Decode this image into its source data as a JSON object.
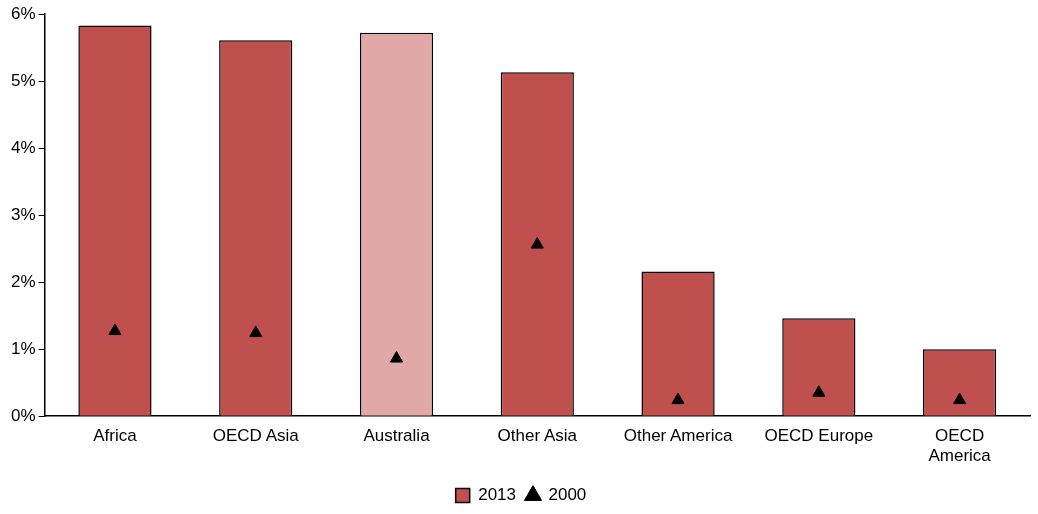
{
  "chart_data": {
    "type": "bar",
    "categories": [
      "Africa",
      "OECD Asia",
      "Australia",
      "Other Asia",
      "Other America",
      "OECD Europe",
      "OECD\nAmerica"
    ],
    "series": [
      {
        "name": "2013",
        "color": "#c0504d",
        "colors": [
          "#c0504d",
          "#c0504d",
          "#e0a8a6",
          "#c0504d",
          "#c0504d",
          "#c0504d",
          "#c0504d"
        ],
        "values": [
          5.83,
          5.61,
          5.72,
          5.13,
          2.16,
          1.46,
          1.0
        ]
      },
      {
        "name": "2000",
        "type": "scatter",
        "color": "#000000",
        "marker": "triangle",
        "x": [
          "Africa",
          "OECD Asia",
          "Australia",
          "Other Asia",
          "Other America",
          "OECD Europe",
          "OECD\nAmerica"
        ],
        "values": [
          1.27,
          1.24,
          0.86,
          2.56,
          0.24,
          0.35,
          0.24
        ]
      }
    ],
    "ylim": [
      0,
      6
    ],
    "yticks": [
      {
        "value": 0,
        "label": "0%"
      },
      {
        "value": 1,
        "label": "1%"
      },
      {
        "value": 2,
        "label": "2%"
      },
      {
        "value": 3,
        "label": "3%"
      },
      {
        "value": 4,
        "label": "4%"
      },
      {
        "value": 5,
        "label": "5%"
      },
      {
        "value": 6,
        "label": "6%"
      }
    ],
    "grid": false,
    "legend": "bottom"
  }
}
